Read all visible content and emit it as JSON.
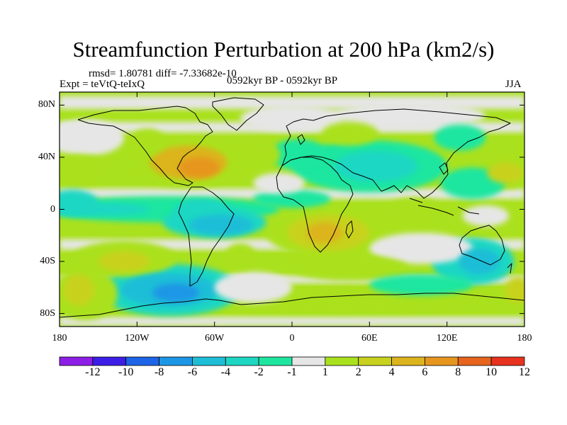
{
  "title": "Streamfunction Perturbation at 200 hPa (km2/s)",
  "stats_line": "rmsd= 1.80781 diff= -7.33682e-10",
  "experiment": "Expt = teVtQ-teIxQ",
  "period": "0592kyr BP - 0592kyr BP",
  "season": "JJA",
  "map": {
    "lon_range": [
      -180,
      180
    ],
    "lat_range": [
      -90,
      90
    ],
    "x_ticks": [
      {
        "value": -180,
        "label": "180"
      },
      {
        "value": -120,
        "label": "120W"
      },
      {
        "value": -60,
        "label": "60W"
      },
      {
        "value": 0,
        "label": "0"
      },
      {
        "value": 60,
        "label": "60E"
      },
      {
        "value": 120,
        "label": "120E"
      },
      {
        "value": 180,
        "label": "180"
      }
    ],
    "y_ticks": [
      {
        "value": 80,
        "label": "80N"
      },
      {
        "value": 40,
        "label": "40N"
      },
      {
        "value": 0,
        "label": "0"
      },
      {
        "value": -40,
        "label": "40S"
      },
      {
        "value": -80,
        "label": "80S"
      }
    ]
  },
  "colorbar": {
    "colors": [
      "#8c1ee6",
      "#3c1ee6",
      "#1e64e6",
      "#1e96e6",
      "#1ebed7",
      "#1ed7c3",
      "#1ee6a0",
      "#e6e6e6",
      "#aae11e",
      "#c8d21e",
      "#dcb41e",
      "#e6961e",
      "#e6641e",
      "#e6321e"
    ],
    "labels": [
      "-12",
      "-10",
      "-8",
      "-6",
      "-4",
      "-2",
      "-1",
      "1",
      "2",
      "4",
      "6",
      "8",
      "10",
      "12"
    ]
  },
  "field_blobs": [
    {
      "lon": -112,
      "lat": 52,
      "rx": 14,
      "ry": 10,
      "level": 8
    },
    {
      "lon": -80,
      "lat": 35,
      "rx": 45,
      "ry": 18,
      "level": 8
    },
    {
      "lon": -80,
      "lat": 36,
      "rx": 30,
      "ry": 13,
      "level": 10
    },
    {
      "lon": -72,
      "lat": 32,
      "rx": 16,
      "ry": 8,
      "level": 11
    },
    {
      "lon": -25,
      "lat": 42,
      "rx": 16,
      "ry": 11,
      "level": 8
    },
    {
      "lon": 45,
      "lat": 58,
      "rx": 22,
      "ry": 9,
      "level": 8
    },
    {
      "lon": 60,
      "lat": 33,
      "rx": 60,
      "ry": 20,
      "level": 6
    },
    {
      "lon": 65,
      "lat": 33,
      "rx": 32,
      "ry": 12,
      "level": 5
    },
    {
      "lon": 5,
      "lat": 42,
      "rx": 22,
      "ry": 12,
      "level": 6
    },
    {
      "lon": 130,
      "lat": 55,
      "rx": 20,
      "ry": 10,
      "level": 6
    },
    {
      "lon": -165,
      "lat": 30,
      "rx": 25,
      "ry": 12,
      "level": 8
    },
    {
      "lon": 165,
      "lat": 30,
      "rx": 25,
      "ry": 14,
      "level": 8
    },
    {
      "lon": 165,
      "lat": 28,
      "rx": 14,
      "ry": 8,
      "level": 9
    },
    {
      "lon": -100,
      "lat": 0,
      "rx": 90,
      "ry": 10,
      "level": 6
    },
    {
      "lon": -70,
      "lat": -2,
      "rx": 22,
      "ry": 10,
      "level": 5
    },
    {
      "lon": 35,
      "lat": -18,
      "rx": 55,
      "ry": 20,
      "level": 8
    },
    {
      "lon": 28,
      "lat": -18,
      "rx": 32,
      "ry": 14,
      "level": 9
    },
    {
      "lon": 25,
      "lat": -18,
      "rx": 14,
      "ry": 8,
      "level": 10
    },
    {
      "lon": 95,
      "lat": -2,
      "rx": 22,
      "ry": 11,
      "level": 8
    },
    {
      "lon": 160,
      "lat": -8,
      "rx": 25,
      "ry": 12,
      "level": 8
    },
    {
      "lon": -130,
      "lat": -38,
      "rx": 40,
      "ry": 14,
      "level": 8
    },
    {
      "lon": -130,
      "lat": -40,
      "rx": 20,
      "ry": 8,
      "level": 9
    },
    {
      "lon": -40,
      "lat": -36,
      "rx": 12,
      "ry": 10,
      "level": 8
    },
    {
      "lon": 45,
      "lat": -45,
      "rx": 45,
      "ry": 10,
      "level": 8
    },
    {
      "lon": -160,
      "lat": -65,
      "rx": 25,
      "ry": 20,
      "level": 8
    },
    {
      "lon": -165,
      "lat": -62,
      "rx": 12,
      "ry": 12,
      "level": 9
    },
    {
      "lon": -95,
      "lat": -62,
      "rx": 55,
      "ry": 20,
      "level": 5
    },
    {
      "lon": -95,
      "lat": -62,
      "rx": 38,
      "ry": 13,
      "level": 4
    },
    {
      "lon": -90,
      "lat": -64,
      "rx": 18,
      "ry": 7,
      "level": 3
    },
    {
      "lon": 140,
      "lat": -40,
      "rx": 32,
      "ry": 18,
      "level": 5
    },
    {
      "lon": 145,
      "lat": -40,
      "rx": 16,
      "ry": 10,
      "level": 4
    },
    {
      "lon": 40,
      "lat": -70,
      "rx": 130,
      "ry": 10,
      "level": 8
    },
    {
      "lon": 175,
      "lat": -62,
      "rx": 10,
      "ry": 10,
      "level": 9
    }
  ]
}
